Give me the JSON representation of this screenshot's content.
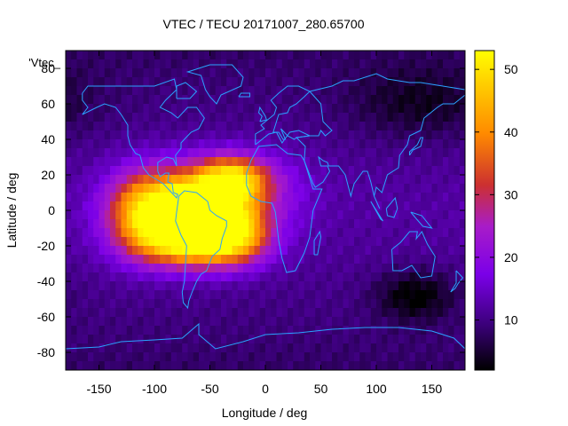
{
  "chart_data": {
    "type": "heatmap",
    "title": "VTEC / TECU 20171007_280.65700",
    "xlabel": "Longitude / deg",
    "ylabel": "Latitude / deg",
    "xlim": [
      -180,
      180
    ],
    "ylim": [
      -90,
      90
    ],
    "x_ticks": [
      -150,
      -100,
      -50,
      0,
      50,
      100,
      150
    ],
    "y_ticks": [
      -80,
      -60,
      -40,
      -20,
      0,
      20,
      40,
      60,
      80
    ],
    "colorbar": {
      "range": [
        2,
        53
      ],
      "ticks": [
        10,
        20,
        30,
        40,
        50
      ],
      "colormap": [
        "#000000",
        "#3a0078",
        "#7b00e8",
        "#a81cc8",
        "#cc3030",
        "#ff8a00",
        "#ffd000",
        "#ffff00"
      ]
    },
    "legend_key": "'Vtec_",
    "coastline_color": "#2aa3ff",
    "grid": false,
    "background_level": 12,
    "features": [
      {
        "name": "south-america-crest",
        "lon": -68,
        "lat": 2,
        "peak": 41,
        "spread_lon": 38,
        "spread_lat": 15
      },
      {
        "name": "south-crest",
        "lon": -60,
        "lat": -18,
        "peak": 36,
        "spread_lon": 36,
        "spread_lat": 10
      },
      {
        "name": "atlantic-north-crest",
        "lon": -30,
        "lat": 18,
        "peak": 30,
        "spread_lon": 22,
        "spread_lat": 9
      },
      {
        "name": "atlantic-south-crest",
        "lon": -25,
        "lat": -10,
        "peak": 18,
        "spread_lon": 18,
        "spread_lat": 12
      },
      {
        "name": "pacific-crest",
        "lon": -112,
        "lat": -2,
        "peak": 20,
        "spread_lon": 22,
        "spread_lat": 16
      },
      {
        "name": "main-peak",
        "lon": -72,
        "lat": 5,
        "peak": 12,
        "spread_lon": 12,
        "spread_lat": 7
      },
      {
        "name": "north-africa-extension",
        "lon": 5,
        "lat": 12,
        "peak": 6,
        "spread_lon": 28,
        "spread_lat": 14
      },
      {
        "name": "australia-trough",
        "lon": 135,
        "lat": -48,
        "peak": -9,
        "spread_lon": 25,
        "spread_lat": 10
      },
      {
        "name": "asia-night-low",
        "lon": 140,
        "lat": 60,
        "peak": -6,
        "spread_lon": 45,
        "spread_lat": 14
      }
    ],
    "coastlines": [
      {
        "name": "north-america",
        "points": [
          [
            -165,
            66
          ],
          [
            -160,
            70
          ],
          [
            -140,
            70
          ],
          [
            -125,
            70
          ],
          [
            -100,
            70
          ],
          [
            -82,
            74
          ],
          [
            -80,
            68
          ],
          [
            -90,
            62
          ],
          [
            -95,
            58
          ],
          [
            -85,
            55
          ],
          [
            -79,
            52
          ],
          [
            -70,
            58
          ],
          [
            -62,
            58
          ],
          [
            -55,
            52
          ],
          [
            -60,
            46
          ],
          [
            -67,
            44
          ],
          [
            -70,
            42
          ],
          [
            -76,
            38
          ],
          [
            -76,
            35
          ],
          [
            -81,
            31
          ],
          [
            -80,
            25
          ],
          [
            -83,
            29
          ],
          [
            -89,
            30
          ],
          [
            -97,
            27
          ],
          [
            -97,
            22
          ],
          [
            -95,
            19
          ],
          [
            -90,
            21
          ],
          [
            -87,
            21
          ],
          [
            -88,
            16
          ],
          [
            -84,
            15
          ],
          [
            -83,
            10
          ],
          [
            -79,
            9
          ],
          [
            -80,
            7
          ],
          [
            -86,
            11
          ],
          [
            -92,
            15
          ],
          [
            -105,
            20
          ],
          [
            -110,
            24
          ],
          [
            -113,
            31
          ],
          [
            -117,
            32
          ],
          [
            -122,
            37
          ],
          [
            -124,
            42
          ],
          [
            -124,
            48
          ],
          [
            -130,
            54
          ],
          [
            -135,
            58
          ],
          [
            -145,
            60
          ],
          [
            -152,
            58
          ],
          [
            -165,
            54
          ],
          [
            -160,
            58
          ],
          [
            -165,
            62
          ],
          [
            -165,
            66
          ]
        ]
      },
      {
        "name": "south-america",
        "points": [
          [
            -78,
            8
          ],
          [
            -73,
            11
          ],
          [
            -62,
            10
          ],
          [
            -52,
            5
          ],
          [
            -50,
            0
          ],
          [
            -44,
            -3
          ],
          [
            -35,
            -6
          ],
          [
            -35,
            -9
          ],
          [
            -39,
            -16
          ],
          [
            -41,
            -22
          ],
          [
            -48,
            -26
          ],
          [
            -53,
            -34
          ],
          [
            -58,
            -36
          ],
          [
            -62,
            -40
          ],
          [
            -66,
            -46
          ],
          [
            -69,
            -51
          ],
          [
            -70,
            -55
          ],
          [
            -74,
            -52
          ],
          [
            -75,
            -46
          ],
          [
            -73,
            -40
          ],
          [
            -72,
            -30
          ],
          [
            -71,
            -20
          ],
          [
            -76,
            -14
          ],
          [
            -81,
            -6
          ],
          [
            -80,
            -1
          ],
          [
            -78,
            8
          ]
        ]
      },
      {
        "name": "africa",
        "points": [
          [
            -17,
            21
          ],
          [
            -13,
            28
          ],
          [
            -6,
            36
          ],
          [
            10,
            37
          ],
          [
            20,
            32
          ],
          [
            32,
            31
          ],
          [
            35,
            28
          ],
          [
            43,
            12
          ],
          [
            51,
            12
          ],
          [
            43,
            0
          ],
          [
            40,
            -15
          ],
          [
            35,
            -24
          ],
          [
            27,
            -34
          ],
          [
            19,
            -35
          ],
          [
            15,
            -27
          ],
          [
            12,
            -17
          ],
          [
            9,
            -1
          ],
          [
            6,
            4
          ],
          [
            -4,
            5
          ],
          [
            -13,
            8
          ],
          [
            -17,
            14
          ],
          [
            -17,
            21
          ]
        ]
      },
      {
        "name": "europe",
        "points": [
          [
            -9,
            37
          ],
          [
            -9,
            43
          ],
          [
            -1,
            46
          ],
          [
            -4,
            48
          ],
          [
            2,
            51
          ],
          [
            8,
            54
          ],
          [
            10,
            58
          ],
          [
            5,
            62
          ],
          [
            12,
            66
          ],
          [
            20,
            70
          ],
          [
            30,
            70
          ],
          [
            40,
            67
          ],
          [
            35,
            64
          ],
          [
            28,
            60
          ],
          [
            22,
            58
          ],
          [
            20,
            55
          ],
          [
            12,
            54
          ],
          [
            7,
            44
          ],
          [
            12,
            44
          ],
          [
            16,
            40
          ],
          [
            18,
            40
          ],
          [
            14,
            46
          ],
          [
            20,
            42
          ],
          [
            26,
            40
          ],
          [
            28,
            41
          ],
          [
            40,
            42
          ],
          [
            30,
            45
          ],
          [
            22,
            44
          ],
          [
            15,
            38
          ],
          [
            10,
            44
          ],
          [
            3,
            43
          ],
          [
            -9,
            37
          ]
        ]
      },
      {
        "name": "asia",
        "points": [
          [
            40,
            67
          ],
          [
            60,
            70
          ],
          [
            70,
            73
          ],
          [
            80,
            73
          ],
          [
            100,
            77
          ],
          [
            110,
            74
          ],
          [
            130,
            72
          ],
          [
            140,
            72
          ],
          [
            160,
            70
          ],
          [
            180,
            68
          ],
          [
            180,
            65
          ],
          [
            170,
            60
          ],
          [
            160,
            60
          ],
          [
            155,
            58
          ],
          [
            143,
            52
          ],
          [
            140,
            45
          ],
          [
            130,
            42
          ],
          [
            128,
            37
          ],
          [
            121,
            31
          ],
          [
            120,
            24
          ],
          [
            110,
            20
          ],
          [
            108,
            16
          ],
          [
            105,
            10
          ],
          [
            100,
            13
          ],
          [
            98,
            8
          ],
          [
            103,
            1
          ],
          [
            98,
            8
          ],
          [
            95,
            16
          ],
          [
            92,
            22
          ],
          [
            88,
            22
          ],
          [
            80,
            15
          ],
          [
            77,
            8
          ],
          [
            72,
            20
          ],
          [
            66,
            25
          ],
          [
            57,
            25
          ],
          [
            56,
            27
          ],
          [
            52,
            28
          ],
          [
            48,
            30
          ],
          [
            50,
            25
          ],
          [
            56,
            25
          ],
          [
            58,
            22
          ],
          [
            52,
            16
          ],
          [
            45,
            13
          ],
          [
            43,
            15
          ],
          [
            35,
            28
          ],
          [
            36,
            36
          ],
          [
            28,
            41
          ],
          [
            40,
            42
          ],
          [
            48,
            42
          ],
          [
            50,
            45
          ],
          [
            54,
            42
          ],
          [
            60,
            45
          ],
          [
            52,
            50
          ],
          [
            50,
            60
          ],
          [
            40,
            67
          ]
        ]
      },
      {
        "name": "australia",
        "points": [
          [
            114,
            -22
          ],
          [
            122,
            -18
          ],
          [
            130,
            -12
          ],
          [
            137,
            -12
          ],
          [
            136,
            -16
          ],
          [
            141,
            -12
          ],
          [
            146,
            -19
          ],
          [
            153,
            -26
          ],
          [
            150,
            -37
          ],
          [
            140,
            -38
          ],
          [
            132,
            -31
          ],
          [
            123,
            -34
          ],
          [
            115,
            -34
          ],
          [
            114,
            -22
          ]
        ]
      },
      {
        "name": "greenland",
        "points": [
          [
            -50,
            82
          ],
          [
            -30,
            82
          ],
          [
            -20,
            75
          ],
          [
            -22,
            70
          ],
          [
            -40,
            65
          ],
          [
            -44,
            60
          ],
          [
            -50,
            64
          ],
          [
            -54,
            68
          ],
          [
            -58,
            76
          ],
          [
            -70,
            78
          ],
          [
            -50,
            82
          ]
        ]
      },
      {
        "name": "antarctica",
        "points": [
          [
            -180,
            -78
          ],
          [
            -150,
            -77
          ],
          [
            -130,
            -74
          ],
          [
            -100,
            -73
          ],
          [
            -75,
            -72
          ],
          [
            -60,
            -64
          ],
          [
            -60,
            -70
          ],
          [
            -45,
            -78
          ],
          [
            -20,
            -74
          ],
          [
            0,
            -70
          ],
          [
            30,
            -69
          ],
          [
            60,
            -67
          ],
          [
            90,
            -66
          ],
          [
            120,
            -66
          ],
          [
            150,
            -68
          ],
          [
            170,
            -72
          ],
          [
            180,
            -78
          ]
        ]
      },
      {
        "name": "madagascar",
        "points": [
          [
            44,
            -25
          ],
          [
            47,
            -25
          ],
          [
            50,
            -15
          ],
          [
            49,
            -12
          ],
          [
            44,
            -17
          ],
          [
            44,
            -25
          ]
        ]
      },
      {
        "name": "japan",
        "points": [
          [
            130,
            31
          ],
          [
            133,
            34
          ],
          [
            140,
            36
          ],
          [
            142,
            41
          ],
          [
            140,
            41
          ],
          [
            137,
            37
          ],
          [
            130,
            33
          ],
          [
            130,
            31
          ]
        ]
      },
      {
        "name": "new-zealand",
        "points": [
          [
            172,
            -34
          ],
          [
            178,
            -38
          ],
          [
            174,
            -41
          ],
          [
            171,
            -44
          ],
          [
            167,
            -46
          ],
          [
            172,
            -41
          ],
          [
            172,
            -34
          ]
        ]
      },
      {
        "name": "uk",
        "points": [
          [
            -5,
            50
          ],
          [
            1,
            51
          ],
          [
            0,
            53
          ],
          [
            -3,
            56
          ],
          [
            -5,
            58
          ],
          [
            -6,
            55
          ],
          [
            -3,
            53
          ],
          [
            -5,
            50
          ]
        ]
      },
      {
        "name": "borneo",
        "points": [
          [
            109,
            1
          ],
          [
            117,
            7
          ],
          [
            119,
            1
          ],
          [
            116,
            -4
          ],
          [
            110,
            -3
          ],
          [
            109,
            1
          ]
        ]
      },
      {
        "name": "sumatra",
        "points": [
          [
            95,
            5
          ],
          [
            104,
            -5
          ],
          [
            106,
            -6
          ],
          [
            100,
            0
          ],
          [
            95,
            5
          ]
        ]
      },
      {
        "name": "new-guinea",
        "points": [
          [
            131,
            -1
          ],
          [
            141,
            -3
          ],
          [
            150,
            -10
          ],
          [
            142,
            -9
          ],
          [
            135,
            -4
          ],
          [
            131,
            -1
          ]
        ]
      },
      {
        "name": "iceland",
        "points": [
          [
            -24,
            64
          ],
          [
            -22,
            66
          ],
          [
            -14,
            66
          ],
          [
            -14,
            64
          ],
          [
            -24,
            64
          ]
        ]
      },
      {
        "name": "baffin",
        "points": [
          [
            -80,
            63
          ],
          [
            -68,
            63
          ],
          [
            -62,
            67
          ],
          [
            -72,
            72
          ],
          [
            -80,
            70
          ],
          [
            -80,
            63
          ]
        ]
      }
    ]
  }
}
